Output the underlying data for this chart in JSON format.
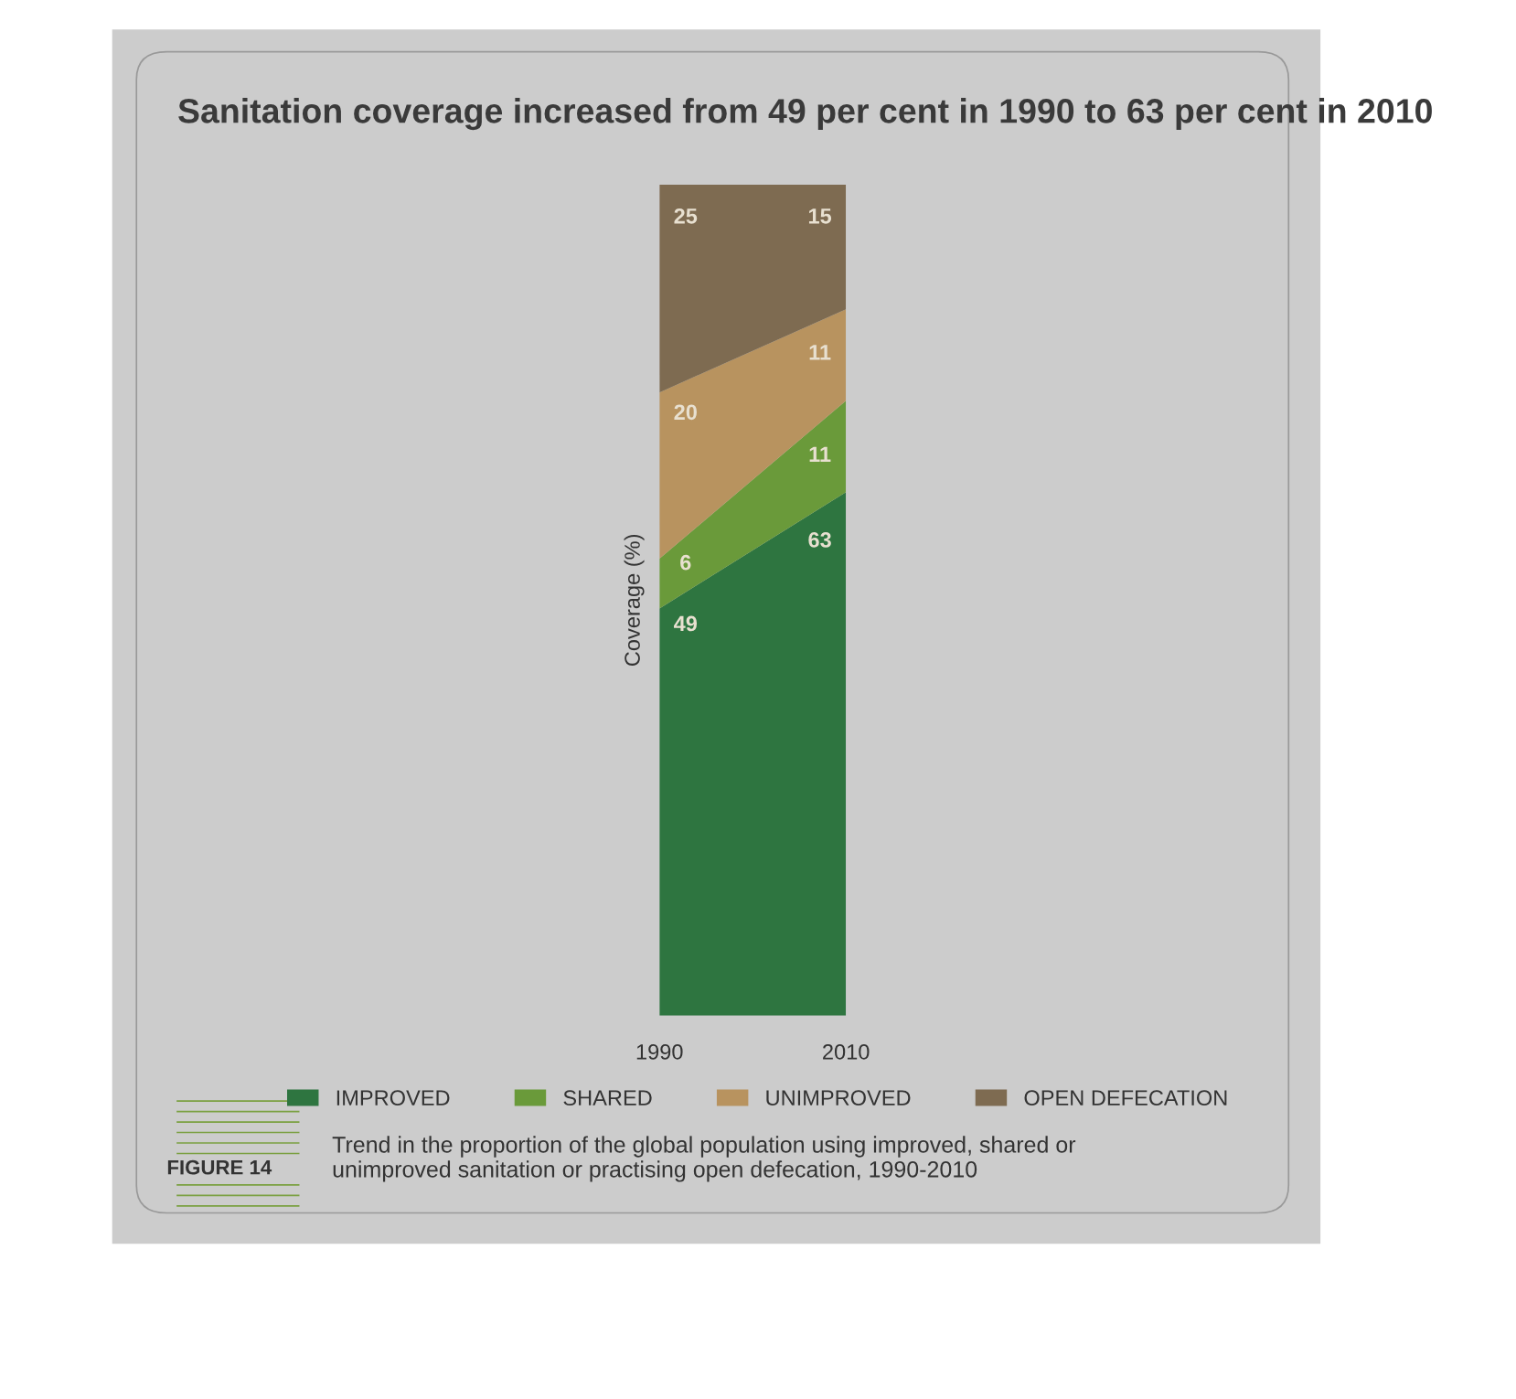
{
  "chart_data": {
    "type": "area",
    "title": "Sanitation coverage increased from 49 per cent in 1990 to 63 per cent in 2010",
    "ylabel": "Coverage (%)",
    "categories": [
      "1990",
      "2010"
    ],
    "stacked": true,
    "data_labels": true,
    "tick_labels": "x",
    "legend": "bottom",
    "grid": false,
    "series": [
      {
        "name": "IMPROVED",
        "color": "#2e7540",
        "values": [
          49,
          63
        ]
      },
      {
        "name": "SHARED",
        "color": "#6a9a3a",
        "values": [
          6,
          11
        ]
      },
      {
        "name": "UNIMPROVED",
        "color": "#b8935f",
        "values": [
          20,
          11
        ]
      },
      {
        "name": "OPEN DEFECATION",
        "color": "#7e6b51",
        "values": [
          25,
          15
        ]
      }
    ],
    "annotations": [
      "FIGURE 14",
      "Trend in the proportion of the global population using improved, shared or unimproved sanitation or practising open defecation, 1990-2010"
    ]
  }
}
